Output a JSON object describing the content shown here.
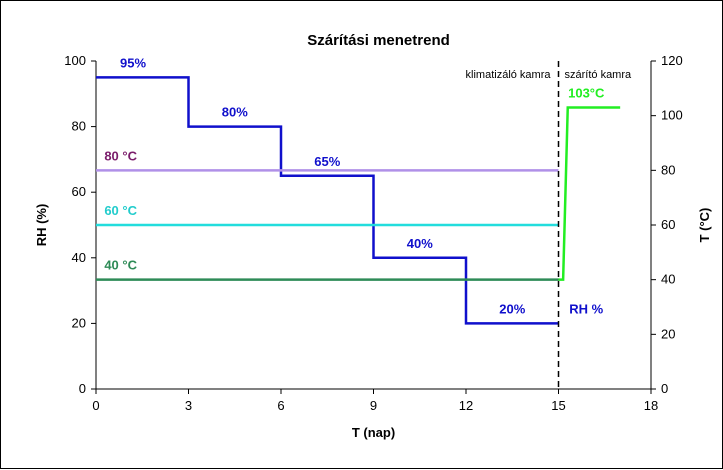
{
  "chart_data": {
    "type": "line",
    "title": "Szárítási menetrend",
    "xlabel": "T (nap)",
    "ylabel_left": "RH (%)",
    "ylabel_right": "T (°C)",
    "xlim": [
      0,
      18
    ],
    "xticks": [
      0,
      3,
      6,
      9,
      12,
      15,
      18
    ],
    "ylim_left": [
      0,
      100
    ],
    "yticks_left": [
      0,
      20,
      40,
      60,
      80,
      100
    ],
    "ylim_right": [
      0,
      120
    ],
    "yticks_right": [
      0,
      20,
      40,
      60,
      80,
      100,
      120
    ],
    "grid": false,
    "divider_x": 15,
    "region_labels": [
      {
        "text": "klimatizáló kamra",
        "side": "left"
      },
      {
        "text": "szárító kamra",
        "side": "right"
      }
    ],
    "series": [
      {
        "name": "RH %",
        "axis": "left",
        "color": "#1010cc",
        "shape": "step",
        "x": [
          0,
          3,
          3,
          6,
          6,
          9,
          9,
          12,
          12,
          15
        ],
        "y": [
          95,
          95,
          80,
          80,
          65,
          65,
          40,
          40,
          20,
          20
        ],
        "labels": [
          {
            "text": "95%",
            "x": 1.2,
            "y": 95
          },
          {
            "text": "80%",
            "x": 4.5,
            "y": 80
          },
          {
            "text": "65%",
            "x": 7.5,
            "y": 65
          },
          {
            "text": "40%",
            "x": 10.5,
            "y": 40
          },
          {
            "text": "20%",
            "x": 13.5,
            "y": 20
          },
          {
            "text": "RH %",
            "x": 15.9,
            "y": 20
          }
        ]
      },
      {
        "axis": "right",
        "color": "#b090e8",
        "x": [
          0,
          15
        ],
        "y": [
          80,
          80
        ],
        "labels": [
          {
            "text": "80 °C",
            "x": 0.8,
            "y": 80,
            "color": "#7b1d6b"
          }
        ]
      },
      {
        "axis": "right",
        "color": "#22dddd",
        "x": [
          0,
          15
        ],
        "y": [
          60,
          60
        ],
        "labels": [
          {
            "text": "60 °C",
            "x": 0.8,
            "y": 60,
            "color": "#22cccc"
          }
        ]
      },
      {
        "axis": "right",
        "color": "#2e8b57",
        "x": [
          0,
          15
        ],
        "y": [
          40,
          40
        ],
        "labels": [
          {
            "text": "40 °C",
            "x": 0.8,
            "y": 40,
            "color": "#2e8b57"
          }
        ]
      },
      {
        "axis": "right",
        "color": "#22ee22",
        "x": [
          15,
          15.15,
          15.3,
          17
        ],
        "y": [
          40,
          40,
          103,
          103
        ],
        "labels": [
          {
            "text": "103°C",
            "x": 15.9,
            "y": 103,
            "color": "#22ee22"
          }
        ]
      }
    ]
  }
}
